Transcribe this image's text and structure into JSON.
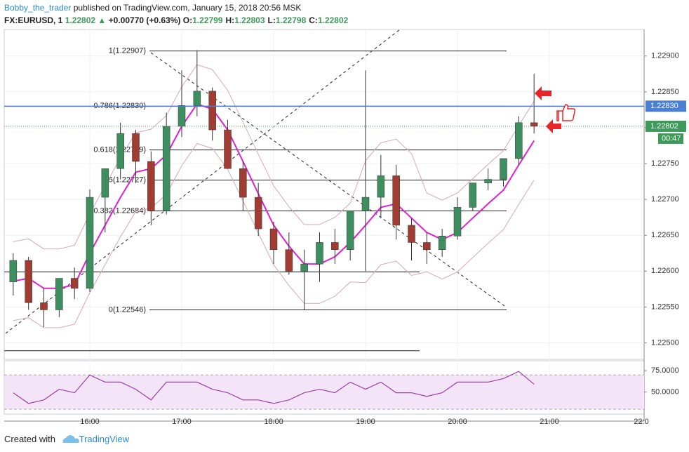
{
  "header": {
    "author": "Bobby_the_trader",
    "published": "published on TradingView.com, January 15, 2018 20:56 MSK",
    "symbol": "FX:EURUSD, 1",
    "price": "1.22802",
    "change": "+0.00770 (+0.63%)",
    "ohlc": [
      {
        "k": "O:",
        "v": "1.22799"
      },
      {
        "k": "H:",
        "v": "1.22803"
      },
      {
        "k": "L:",
        "v": "1.22798"
      },
      {
        "k": "C:",
        "v": "1.22802"
      }
    ]
  },
  "footer": {
    "created": "Created with",
    "brand": "TradingView"
  },
  "chart_data": {
    "type": "candlestick",
    "x": [
      "15:10",
      "15:20",
      "15:30",
      "15:40",
      "15:50",
      "16:00",
      "16:10",
      "16:20",
      "16:30",
      "16:40",
      "16:50",
      "17:00",
      "17:10",
      "17:20",
      "17:30",
      "17:40",
      "17:50",
      "18:00",
      "18:10",
      "18:20",
      "18:30",
      "18:40",
      "18:50",
      "19:00",
      "19:10",
      "19:20",
      "19:30",
      "19:40",
      "19:50",
      "20:00",
      "20:10",
      "20:20",
      "20:30",
      "20:40",
      "20:50"
    ],
    "open": [
      1.22585,
      1.22615,
      1.22556,
      1.22546,
      1.2259,
      1.22576,
      1.22703,
      1.22743,
      1.22792,
      1.22753,
      1.22684,
      1.22802,
      1.22831,
      1.22851,
      1.22797,
      1.22743,
      1.22703,
      1.22659,
      1.2263,
      1.226,
      1.2261,
      1.2264,
      1.2263,
      1.22684,
      1.22703,
      1.22733,
      1.22664,
      1.2264,
      1.2263,
      1.22649,
      1.22689,
      1.22723,
      1.22728,
      1.22757,
      1.22807
    ],
    "high": [
      1.22625,
      1.2262,
      1.22576,
      1.2259,
      1.22605,
      1.22714,
      1.22743,
      1.22807,
      1.22797,
      1.22767,
      1.22821,
      1.2288,
      1.22908,
      1.22856,
      1.22811,
      1.22753,
      1.22723,
      1.22669,
      1.22654,
      1.2263,
      1.22654,
      1.22659,
      1.22684,
      1.2288,
      1.22762,
      1.22748,
      1.22674,
      1.22654,
      1.22659,
      1.22703,
      1.22723,
      1.22743,
      1.22757,
      1.22816,
      1.22875
    ],
    "low": [
      1.22566,
      1.22546,
      1.22522,
      1.22536,
      1.22561,
      1.22571,
      1.22654,
      1.22728,
      1.22723,
      1.22664,
      1.22679,
      1.22787,
      1.22816,
      1.22782,
      1.22743,
      1.22684,
      1.22649,
      1.2261,
      1.22595,
      1.22546,
      1.22585,
      1.2261,
      1.22615,
      1.226,
      1.22674,
      1.22644,
      1.22615,
      1.2261,
      1.2262,
      1.22644,
      1.22684,
      1.22713,
      1.22718,
      1.22748,
      1.22792
    ],
    "close": [
      1.22615,
      1.22556,
      1.22546,
      1.2259,
      1.22576,
      1.22703,
      1.22743,
      1.22792,
      1.22753,
      1.22684,
      1.22802,
      1.22831,
      1.22851,
      1.22797,
      1.22743,
      1.22703,
      1.22659,
      1.2263,
      1.226,
      1.2261,
      1.2264,
      1.2263,
      1.22684,
      1.22703,
      1.22733,
      1.22664,
      1.2264,
      1.2263,
      1.22649,
      1.22689,
      1.22723,
      1.22728,
      1.22757,
      1.22807,
      1.22802
    ],
    "up_color": "#3d8f5f",
    "down_color": "#a03c32",
    "overlays": [
      {
        "color": "#e020d0",
        "values": [
          1.22586,
          1.2259,
          1.22576,
          1.22576,
          1.22581,
          1.22625,
          1.22664,
          1.22703,
          1.22738,
          1.22743,
          1.22762,
          1.22802,
          1.22833,
          1.22826,
          1.22797,
          1.22753,
          1.22708,
          1.22664,
          1.22635,
          1.2261,
          1.2261,
          1.2262,
          1.2264,
          1.22664,
          1.22689,
          1.22694,
          1.22674,
          1.22654,
          1.22644,
          1.22654,
          1.22674,
          1.22694,
          1.22713,
          1.22748,
          1.22782
        ]
      },
      {
        "color": "#d9a7b4",
        "values": [
          1.22641,
          1.22645,
          1.22631,
          1.22631,
          1.22636,
          1.2268,
          1.22719,
          1.22758,
          1.22793,
          1.22798,
          1.22817,
          1.22857,
          1.22888,
          1.22881,
          1.22852,
          1.22808,
          1.22763,
          1.22719,
          1.2269,
          1.22665,
          1.22665,
          1.22675,
          1.22695,
          1.22754,
          1.22779,
          1.22784,
          1.22764,
          1.22709,
          1.22699,
          1.22709,
          1.22729,
          1.22749,
          1.22768,
          1.22803,
          1.22837
        ]
      },
      {
        "color": "#d9a7b4",
        "values": [
          1.22531,
          1.22535,
          1.22521,
          1.22521,
          1.22526,
          1.2257,
          1.22609,
          1.22648,
          1.22683,
          1.22688,
          1.22707,
          1.22747,
          1.22778,
          1.22771,
          1.22742,
          1.22698,
          1.22653,
          1.22609,
          1.2258,
          1.22555,
          1.22555,
          1.22565,
          1.22585,
          1.22584,
          1.22609,
          1.22614,
          1.22594,
          1.22599,
          1.22589,
          1.22599,
          1.22619,
          1.22639,
          1.22658,
          1.22693,
          1.22727
        ]
      }
    ],
    "ylim": [
      1.22477,
      1.22937
    ],
    "yticks": [
      {
        "value": 1.225,
        "label": "1.22500"
      },
      {
        "value": 1.2255,
        "label": "1.22550"
      },
      {
        "value": 1.226,
        "label": "1.22600"
      },
      {
        "value": 1.2265,
        "label": "1.22650"
      },
      {
        "value": 1.227,
        "label": "1.22700"
      },
      {
        "value": 1.2275,
        "label": "1.22750"
      },
      {
        "value": 1.228,
        "label": "1.22800"
      },
      {
        "value": 1.2285,
        "label": "1.22850"
      },
      {
        "value": 1.229,
        "label": "1.22900"
      }
    ],
    "xticks": [
      "16:00",
      "17:00",
      "18:00",
      "19:00",
      "20:00",
      "21:00",
      "22:0"
    ],
    "grid": true,
    "fib": [
      {
        "text": "1(1.22907)",
        "price": 1.22907
      },
      {
        "text": "0.786(1.22830)",
        "price": 1.2283
      },
      {
        "text": "0.618(1.22769)",
        "price": 1.22769
      },
      {
        "text": "0.5(1.22727)",
        "price": 1.22727
      },
      {
        "text": "0.382(1.22684)",
        "price": 1.22684
      },
      {
        "text": "0(1.22546)",
        "price": 1.22546
      }
    ],
    "hlines": [
      1.22599,
      1.22489
    ],
    "marker_line": {
      "price": 1.2283,
      "label": "1.22830",
      "color": "#4a7fd4"
    },
    "last_price": {
      "price": 1.22802,
      "label": "1.22802",
      "countdown": "00:47",
      "color": "#3d9a5a"
    },
    "rsi": {
      "color": "#9b3fa8",
      "values": [
        49.2,
        36.7,
        40.8,
        53.3,
        49.2,
        70,
        61.7,
        61.7,
        53.3,
        40.8,
        61.7,
        61.7,
        61.7,
        53.3,
        49.2,
        40.8,
        40.8,
        36.7,
        40.8,
        49.2,
        53.3,
        49.2,
        61.7,
        53.3,
        61.7,
        49.2,
        49.2,
        45,
        49.2,
        61.7,
        61.7,
        61.7,
        65.8,
        74.2,
        59.2
      ],
      "ylim": [
        24.2,
        86.7
      ],
      "yticks": [
        {
          "value": 75,
          "label": "75.0000"
        },
        {
          "value": 50,
          "label": "50.0000"
        }
      ],
      "levels": [
        70,
        30
      ]
    }
  }
}
